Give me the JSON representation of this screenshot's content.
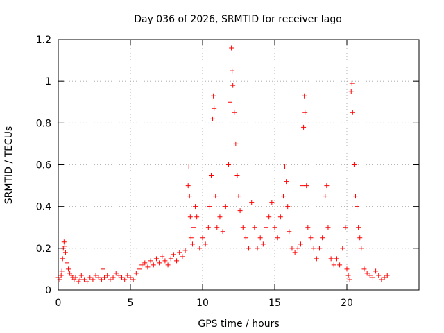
{
  "chart_data": {
    "type": "scatter",
    "title": "Day 036 of 2026, SRMTID for receiver Iago",
    "xlabel": "GPS time / hours",
    "ylabel": "SRMTID / TECUs",
    "xlim": [
      0,
      25
    ],
    "ylim": [
      0,
      1.2
    ],
    "xticks": [
      0,
      5,
      10,
      15,
      20
    ],
    "xtick_labels": [
      "0",
      "5",
      "10",
      "15",
      "20"
    ],
    "yticks": [
      0,
      0.2,
      0.4,
      0.6,
      0.8,
      1.0,
      1.2
    ],
    "ytick_labels": [
      "0",
      "0.2",
      "0.4",
      "0.6",
      "0.8",
      "1",
      "1.2"
    ],
    "grid": true,
    "marker": "+",
    "color": "#ff0000",
    "series": [
      {
        "name": "SRMTID",
        "points": [
          [
            0.0,
            0.06
          ],
          [
            0.1,
            0.05
          ],
          [
            0.2,
            0.07
          ],
          [
            0.25,
            0.09
          ],
          [
            0.3,
            0.15
          ],
          [
            0.35,
            0.2
          ],
          [
            0.4,
            0.23
          ],
          [
            0.45,
            0.21
          ],
          [
            0.5,
            0.18
          ],
          [
            0.6,
            0.13
          ],
          [
            0.7,
            0.1
          ],
          [
            0.8,
            0.08
          ],
          [
            0.9,
            0.07
          ],
          [
            1.0,
            0.06
          ],
          [
            1.1,
            0.05
          ],
          [
            1.2,
            0.06
          ],
          [
            1.4,
            0.04
          ],
          [
            1.5,
            0.05
          ],
          [
            1.6,
            0.07
          ],
          [
            1.8,
            0.05
          ],
          [
            2.0,
            0.04
          ],
          [
            2.2,
            0.06
          ],
          [
            2.4,
            0.05
          ],
          [
            2.6,
            0.07
          ],
          [
            2.8,
            0.06
          ],
          [
            3.0,
            0.05
          ],
          [
            3.1,
            0.1
          ],
          [
            3.2,
            0.06
          ],
          [
            3.4,
            0.07
          ],
          [
            3.6,
            0.05
          ],
          [
            3.8,
            0.06
          ],
          [
            4.0,
            0.08
          ],
          [
            4.2,
            0.07
          ],
          [
            4.4,
            0.06
          ],
          [
            4.6,
            0.05
          ],
          [
            4.8,
            0.07
          ],
          [
            5.0,
            0.06
          ],
          [
            5.2,
            0.05
          ],
          [
            5.4,
            0.08
          ],
          [
            5.6,
            0.1
          ],
          [
            5.8,
            0.12
          ],
          [
            6.0,
            0.13
          ],
          [
            6.2,
            0.11
          ],
          [
            6.4,
            0.14
          ],
          [
            6.6,
            0.12
          ],
          [
            6.8,
            0.15
          ],
          [
            7.0,
            0.13
          ],
          [
            7.2,
            0.16
          ],
          [
            7.4,
            0.14
          ],
          [
            7.6,
            0.12
          ],
          [
            7.8,
            0.15
          ],
          [
            8.0,
            0.17
          ],
          [
            8.2,
            0.14
          ],
          [
            8.4,
            0.18
          ],
          [
            8.6,
            0.16
          ],
          [
            8.8,
            0.19
          ],
          [
            9.0,
            0.5
          ],
          [
            9.05,
            0.59
          ],
          [
            9.1,
            0.45
          ],
          [
            9.15,
            0.35
          ],
          [
            9.2,
            0.25
          ],
          [
            9.3,
            0.22
          ],
          [
            9.4,
            0.3
          ],
          [
            9.5,
            0.4
          ],
          [
            9.6,
            0.35
          ],
          [
            9.8,
            0.2
          ],
          [
            10.0,
            0.25
          ],
          [
            10.2,
            0.22
          ],
          [
            10.4,
            0.3
          ],
          [
            10.5,
            0.4
          ],
          [
            10.6,
            0.55
          ],
          [
            10.7,
            0.82
          ],
          [
            10.75,
            0.93
          ],
          [
            10.8,
            0.87
          ],
          [
            10.9,
            0.45
          ],
          [
            11.0,
            0.3
          ],
          [
            11.2,
            0.35
          ],
          [
            11.4,
            0.28
          ],
          [
            11.6,
            0.4
          ],
          [
            11.8,
            0.6
          ],
          [
            11.9,
            0.9
          ],
          [
            12.0,
            1.16
          ],
          [
            12.05,
            1.05
          ],
          [
            12.1,
            0.98
          ],
          [
            12.2,
            0.85
          ],
          [
            12.3,
            0.7
          ],
          [
            12.4,
            0.55
          ],
          [
            12.5,
            0.45
          ],
          [
            12.6,
            0.38
          ],
          [
            12.8,
            0.3
          ],
          [
            13.0,
            0.25
          ],
          [
            13.2,
            0.2
          ],
          [
            13.4,
            0.42
          ],
          [
            13.6,
            0.3
          ],
          [
            13.8,
            0.2
          ],
          [
            14.0,
            0.25
          ],
          [
            14.2,
            0.22
          ],
          [
            14.4,
            0.3
          ],
          [
            14.6,
            0.35
          ],
          [
            14.8,
            0.42
          ],
          [
            15.0,
            0.3
          ],
          [
            15.2,
            0.25
          ],
          [
            15.4,
            0.35
          ],
          [
            15.6,
            0.45
          ],
          [
            15.7,
            0.59
          ],
          [
            15.8,
            0.52
          ],
          [
            15.9,
            0.4
          ],
          [
            16.0,
            0.28
          ],
          [
            16.2,
            0.2
          ],
          [
            16.4,
            0.18
          ],
          [
            16.6,
            0.2
          ],
          [
            16.8,
            0.22
          ],
          [
            16.9,
            0.5
          ],
          [
            17.0,
            0.78
          ],
          [
            17.05,
            0.93
          ],
          [
            17.1,
            0.85
          ],
          [
            17.2,
            0.5
          ],
          [
            17.3,
            0.3
          ],
          [
            17.5,
            0.25
          ],
          [
            17.7,
            0.2
          ],
          [
            17.9,
            0.15
          ],
          [
            18.1,
            0.2
          ],
          [
            18.3,
            0.25
          ],
          [
            18.5,
            0.45
          ],
          [
            18.6,
            0.5
          ],
          [
            18.7,
            0.3
          ],
          [
            18.9,
            0.15
          ],
          [
            19.1,
            0.12
          ],
          [
            19.3,
            0.15
          ],
          [
            19.5,
            0.12
          ],
          [
            19.7,
            0.2
          ],
          [
            19.9,
            0.3
          ],
          [
            20.0,
            0.1
          ],
          [
            20.1,
            0.07
          ],
          [
            20.2,
            0.05
          ],
          [
            20.3,
            0.95
          ],
          [
            20.35,
            0.99
          ],
          [
            20.4,
            0.85
          ],
          [
            20.5,
            0.6
          ],
          [
            20.6,
            0.45
          ],
          [
            20.7,
            0.4
          ],
          [
            20.8,
            0.3
          ],
          [
            20.9,
            0.25
          ],
          [
            21.0,
            0.2
          ],
          [
            21.2,
            0.1
          ],
          [
            21.4,
            0.08
          ],
          [
            21.6,
            0.07
          ],
          [
            21.8,
            0.06
          ],
          [
            22.0,
            0.09
          ],
          [
            22.2,
            0.07
          ],
          [
            22.4,
            0.05
          ],
          [
            22.6,
            0.06
          ],
          [
            22.8,
            0.07
          ]
        ]
      }
    ]
  }
}
